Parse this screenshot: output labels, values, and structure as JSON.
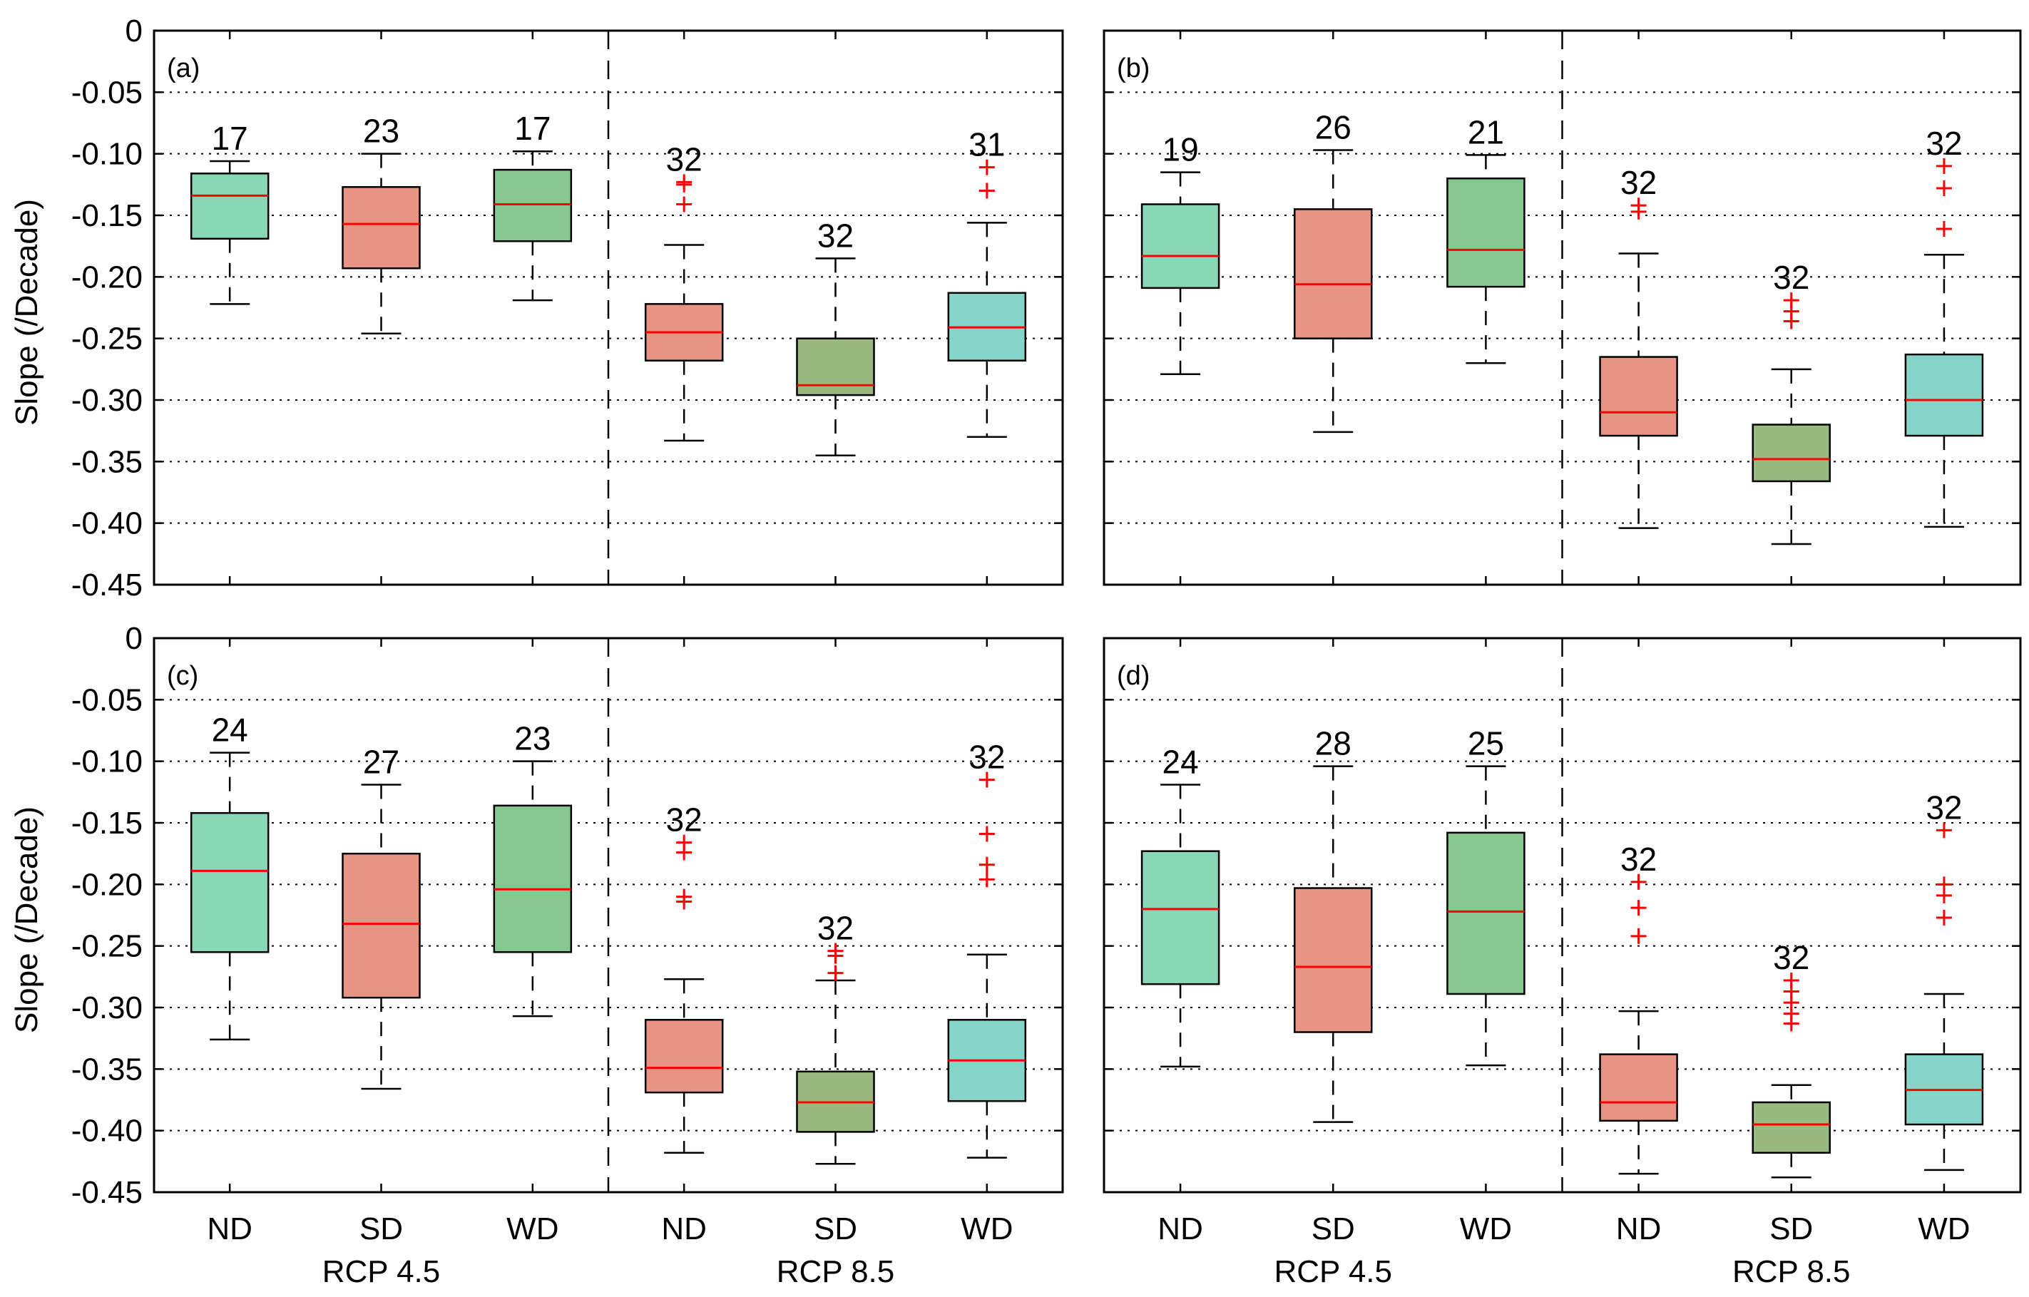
{
  "chart_data": {
    "type": "boxplot",
    "ylabel": "Slope (/Decade)",
    "ylim": [
      -0.45,
      0
    ],
    "yticks": [
      0,
      -0.05,
      -0.1,
      -0.15,
      -0.2,
      -0.25,
      -0.3,
      -0.35,
      -0.4,
      -0.45
    ],
    "ytick_labels": [
      "0",
      "-0.05",
      "-0.10",
      "-0.15",
      "-0.20",
      "-0.25",
      "-0.30",
      "-0.35",
      "-0.40",
      "-0.45"
    ],
    "categories": [
      "ND",
      "SD",
      "WD",
      "ND",
      "SD",
      "WD"
    ],
    "groups": [
      "RCP 4.5",
      "RCP 8.5"
    ],
    "grid": true,
    "colors": {
      "teal_green": "#88d8b8",
      "salmon": "#e89484",
      "green": "#84c88f",
      "olive_green": "#98ba7e",
      "cyan": "#84d4c8",
      "median": "#ff0000",
      "outlier": "#ff0000"
    },
    "panels": [
      {
        "label": "(a)",
        "boxes": [
          {
            "cat": "ND",
            "group": "RCP 4.5",
            "count": "17",
            "color": "#88d8b8",
            "whislo": -0.222,
            "q1": -0.169,
            "median": -0.134,
            "q3": -0.116,
            "whishi": -0.106,
            "outliers": []
          },
          {
            "cat": "SD",
            "group": "RCP 4.5",
            "count": "23",
            "color": "#e89484",
            "whislo": -0.246,
            "q1": -0.193,
            "median": -0.157,
            "q3": -0.127,
            "whishi": -0.1,
            "outliers": []
          },
          {
            "cat": "WD",
            "group": "RCP 4.5",
            "count": "17",
            "color": "#84c88f",
            "whislo": -0.219,
            "q1": -0.171,
            "median": -0.141,
            "q3": -0.113,
            "whishi": -0.098,
            "outliers": []
          },
          {
            "cat": "ND",
            "group": "RCP 8.5",
            "count": "32",
            "color": "#e89484",
            "whislo": -0.333,
            "q1": -0.268,
            "median": -0.245,
            "q3": -0.222,
            "whishi": -0.174,
            "outliers": [
              -0.123,
              -0.125,
              -0.141
            ]
          },
          {
            "cat": "SD",
            "group": "RCP 8.5",
            "count": "32",
            "color": "#98ba7e",
            "whislo": -0.345,
            "q1": -0.296,
            "median": -0.288,
            "q3": -0.25,
            "whishi": -0.185,
            "outliers": []
          },
          {
            "cat": "WD",
            "group": "RCP 8.5",
            "count": "31",
            "color": "#84d4c8",
            "whislo": -0.33,
            "q1": -0.268,
            "median": -0.241,
            "q3": -0.213,
            "whishi": -0.156,
            "outliers": [
              -0.111,
              -0.13
            ]
          }
        ]
      },
      {
        "label": "(b)",
        "boxes": [
          {
            "cat": "ND",
            "group": "RCP 4.5",
            "count": "19",
            "color": "#88d8b8",
            "whislo": -0.279,
            "q1": -0.209,
            "median": -0.183,
            "q3": -0.141,
            "whishi": -0.115,
            "outliers": []
          },
          {
            "cat": "SD",
            "group": "RCP 4.5",
            "count": "26",
            "color": "#e89484",
            "whislo": -0.326,
            "q1": -0.25,
            "median": -0.206,
            "q3": -0.145,
            "whishi": -0.097,
            "outliers": []
          },
          {
            "cat": "WD",
            "group": "RCP 4.5",
            "count": "21",
            "color": "#84c88f",
            "whislo": -0.27,
            "q1": -0.208,
            "median": -0.178,
            "q3": -0.12,
            "whishi": -0.101,
            "outliers": []
          },
          {
            "cat": "ND",
            "group": "RCP 8.5",
            "count": "32",
            "color": "#e89484",
            "whislo": -0.404,
            "q1": -0.329,
            "median": -0.31,
            "q3": -0.265,
            "whishi": -0.181,
            "outliers": [
              -0.142,
              -0.147
            ]
          },
          {
            "cat": "SD",
            "group": "RCP 8.5",
            "count": "32",
            "color": "#98ba7e",
            "whislo": -0.417,
            "q1": -0.366,
            "median": -0.348,
            "q3": -0.32,
            "whishi": -0.275,
            "outliers": [
              -0.219,
              -0.228,
              -0.236
            ]
          },
          {
            "cat": "WD",
            "group": "RCP 8.5",
            "count": "32",
            "color": "#84d4c8",
            "whislo": -0.403,
            "q1": -0.329,
            "median": -0.3,
            "q3": -0.263,
            "whishi": -0.182,
            "outliers": [
              -0.11,
              -0.128,
              -0.161
            ]
          }
        ]
      },
      {
        "label": "(c)",
        "boxes": [
          {
            "cat": "ND",
            "group": "RCP 4.5",
            "count": "24",
            "color": "#88d8b8",
            "whislo": -0.326,
            "q1": -0.255,
            "median": -0.189,
            "q3": -0.142,
            "whishi": -0.093,
            "outliers": []
          },
          {
            "cat": "SD",
            "group": "RCP 4.5",
            "count": "27",
            "color": "#e89484",
            "whislo": -0.366,
            "q1": -0.292,
            "median": -0.232,
            "q3": -0.175,
            "whishi": -0.119,
            "outliers": []
          },
          {
            "cat": "WD",
            "group": "RCP 4.5",
            "count": "23",
            "color": "#84c88f",
            "whislo": -0.307,
            "q1": -0.255,
            "median": -0.204,
            "q3": -0.136,
            "whishi": -0.1,
            "outliers": []
          },
          {
            "cat": "ND",
            "group": "RCP 8.5",
            "count": "32",
            "color": "#e89484",
            "whislo": -0.418,
            "q1": -0.369,
            "median": -0.349,
            "q3": -0.31,
            "whishi": -0.277,
            "outliers": [
              -0.166,
              -0.174,
              -0.21,
              -0.214
            ]
          },
          {
            "cat": "SD",
            "group": "RCP 8.5",
            "count": "32",
            "color": "#98ba7e",
            "whislo": -0.427,
            "q1": -0.401,
            "median": -0.377,
            "q3": -0.352,
            "whishi": -0.278,
            "outliers": [
              -0.254,
              -0.258,
              -0.272
            ]
          },
          {
            "cat": "WD",
            "group": "RCP 8.5",
            "count": "32",
            "color": "#84d4c8",
            "whislo": -0.422,
            "q1": -0.376,
            "median": -0.343,
            "q3": -0.31,
            "whishi": -0.257,
            "outliers": [
              -0.115,
              -0.159,
              -0.184,
              -0.196
            ]
          }
        ]
      },
      {
        "label": "(d)",
        "boxes": [
          {
            "cat": "ND",
            "group": "RCP 4.5",
            "count": "24",
            "color": "#88d8b8",
            "whislo": -0.348,
            "q1": -0.281,
            "median": -0.22,
            "q3": -0.173,
            "whishi": -0.119,
            "outliers": []
          },
          {
            "cat": "SD",
            "group": "RCP 4.5",
            "count": "28",
            "color": "#e89484",
            "whislo": -0.393,
            "q1": -0.32,
            "median": -0.267,
            "q3": -0.203,
            "whishi": -0.104,
            "outliers": []
          },
          {
            "cat": "WD",
            "group": "RCP 4.5",
            "count": "25",
            "color": "#84c88f",
            "whislo": -0.347,
            "q1": -0.289,
            "median": -0.222,
            "q3": -0.158,
            "whishi": -0.104,
            "outliers": []
          },
          {
            "cat": "ND",
            "group": "RCP 8.5",
            "count": "32",
            "color": "#e89484",
            "whislo": -0.435,
            "q1": -0.392,
            "median": -0.377,
            "q3": -0.338,
            "whishi": -0.303,
            "outliers": [
              -0.198,
              -0.219,
              -0.242
            ]
          },
          {
            "cat": "SD",
            "group": "RCP 8.5",
            "count": "32",
            "color": "#98ba7e",
            "whislo": -0.438,
            "q1": -0.418,
            "median": -0.395,
            "q3": -0.377,
            "whishi": -0.363,
            "outliers": [
              -0.278,
              -0.287,
              -0.296,
              -0.305,
              -0.313
            ]
          },
          {
            "cat": "WD",
            "group": "RCP 8.5",
            "count": "32",
            "color": "#84d4c8",
            "whislo": -0.432,
            "q1": -0.395,
            "median": -0.367,
            "q3": -0.338,
            "whishi": -0.289,
            "outliers": [
              -0.156,
              -0.2,
              -0.209,
              -0.227
            ]
          }
        ]
      }
    ]
  }
}
